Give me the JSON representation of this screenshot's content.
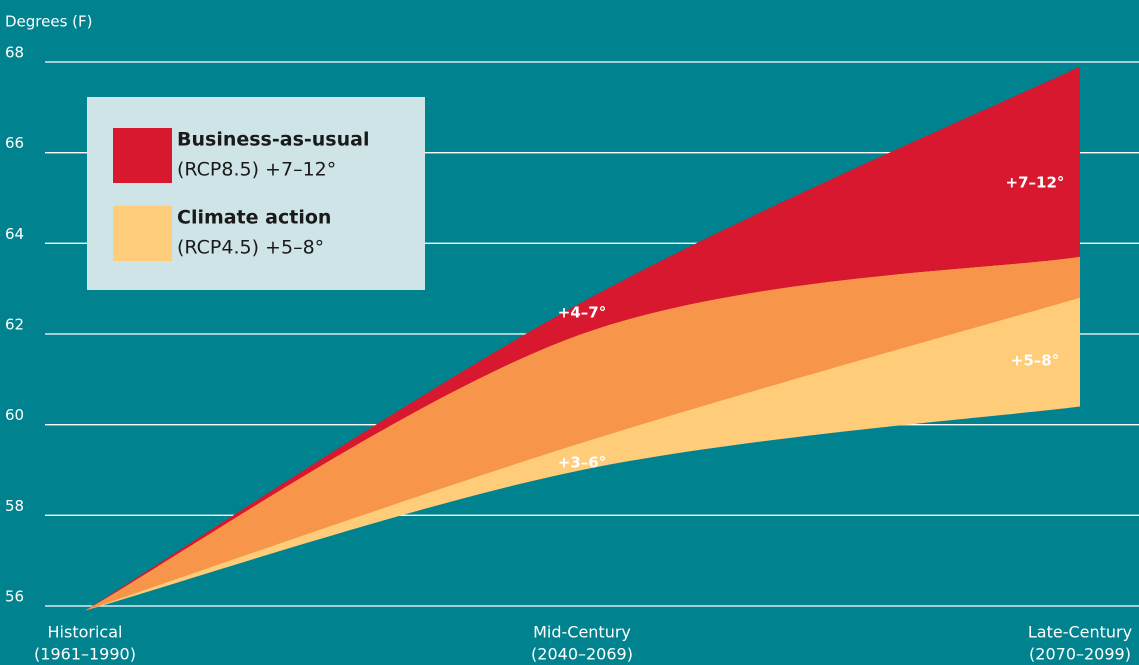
{
  "chart_data": {
    "type": "range_area",
    "y_axis_label": "Degrees (F)",
    "categories": [
      "Historical",
      "Mid-Century",
      "Late-Century"
    ],
    "category_periods": [
      "(1961–1990)",
      "(2040–2069)",
      "(2070–2099)"
    ],
    "series": [
      {
        "name": "Climate action",
        "legend_detail": "(RCP4.5) +5–8°",
        "color": "#ffcc7a",
        "low": [
          55.9,
          59.0,
          60.4
        ],
        "high": [
          55.9,
          62.0,
          63.7
        ]
      },
      {
        "name": "Business-as-usual",
        "legend_detail": "(RCP8.5) +7–12°",
        "color": "#d7182e",
        "low": [
          55.9,
          59.6,
          62.8
        ],
        "high": [
          55.9,
          62.7,
          67.9
        ]
      }
    ],
    "overlap_color": "#f7964a",
    "annotations": [
      "+4–7°",
      "+3–6°",
      "+7–12°",
      "+5–8°"
    ],
    "ylim": [
      56,
      68
    ],
    "yticks": [
      56,
      58,
      60,
      62,
      64,
      66,
      68
    ],
    "grid": true
  }
}
